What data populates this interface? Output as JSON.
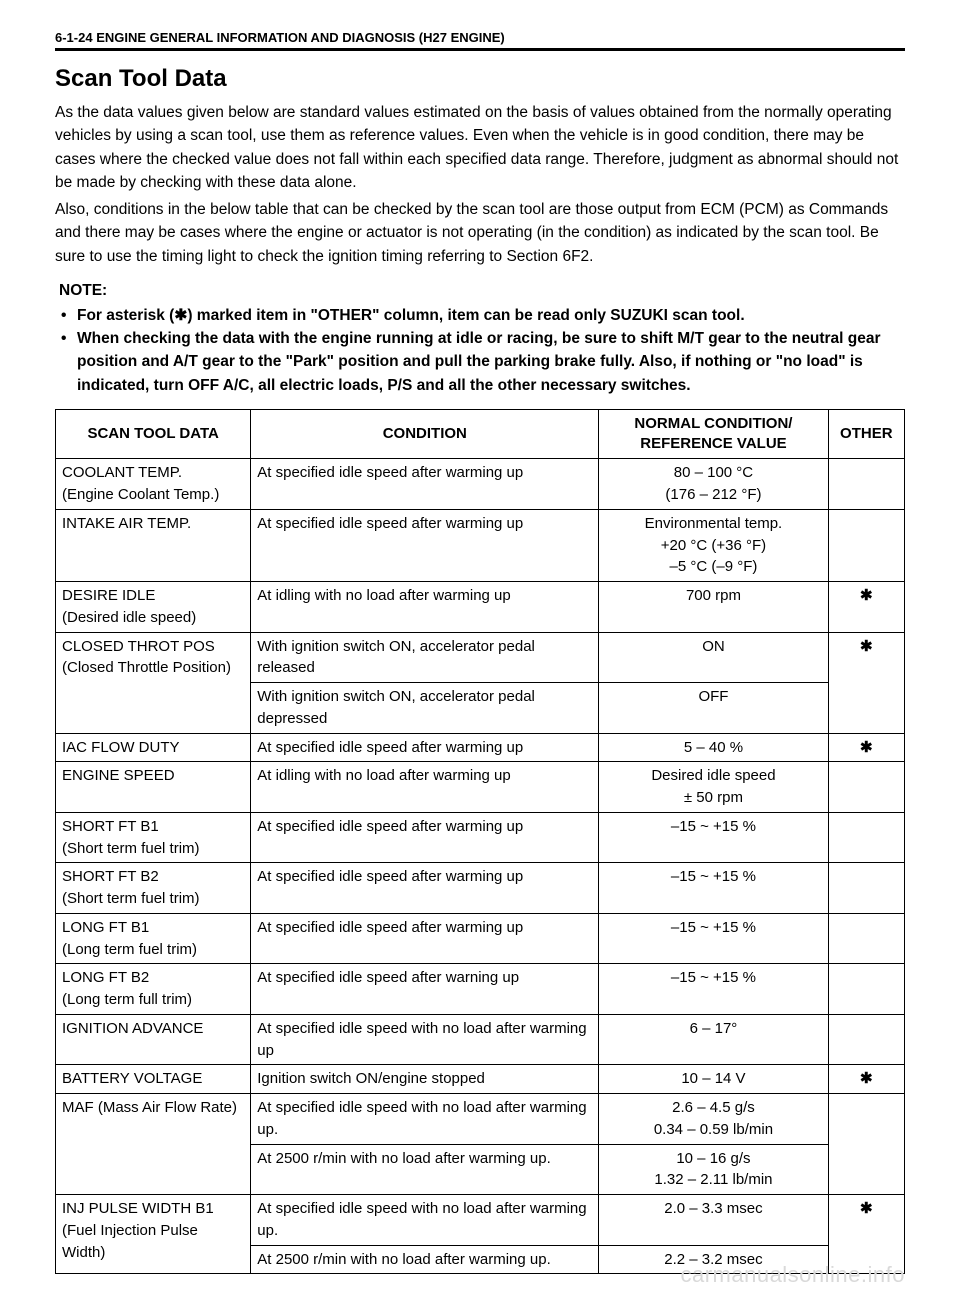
{
  "header": {
    "page_ref": "6-1-24 ENGINE GENERAL INFORMATION AND DIAGNOSIS (H27 ENGINE)"
  },
  "title": "Scan Tool Data",
  "paragraphs": {
    "p1": "As the data values given below are standard values estimated on the basis of values obtained from the normally operating vehicles by using a scan tool, use them as reference values. Even when the vehicle is in good condition, there may be cases where the checked value does not fall within each specified data range. Therefore, judgment as abnormal should not be made by checking with these data alone.",
    "p2": "Also, conditions in the below table that can be checked by the scan tool are those output from ECM (PCM) as Commands and there may be cases where the engine or actuator is not operating (in the condition) as indicated by the scan tool. Be sure to use the timing light to check the ignition timing referring to Section 6F2."
  },
  "note": {
    "label": "NOTE:",
    "items": [
      "For asterisk (✱) marked item in \"OTHER\" column, item can be read only SUZUKI scan tool.",
      "When checking the data with the engine running at idle or racing, be sure to shift M/T gear to the neutral gear position and A/T gear to the \"Park\" position and pull the parking brake fully. Also, if nothing or \"no load\" is indicated, turn OFF A/C, all electric loads, P/S and all the other necessary switches."
    ]
  },
  "table": {
    "headers": {
      "c0": "SCAN TOOL DATA",
      "c1": "CONDITION",
      "c2": "NORMAL CONDITION/ REFERENCE VALUE",
      "c3": "OTHER"
    },
    "rows": {
      "r0": {
        "data": "COOLANT TEMP.\n(Engine Coolant Temp.)",
        "cond": "At specified idle speed after warming up",
        "ref": "80 – 100 °C\n(176 – 212 °F)",
        "other": ""
      },
      "r1": {
        "data": "INTAKE AIR TEMP.",
        "cond": "At specified idle speed after warming up",
        "ref": "Environmental temp.\n+20 °C (+36 °F)\n–5 °C (–9 °F)",
        "other": ""
      },
      "r2": {
        "data": "DESIRE IDLE\n(Desired idle speed)",
        "cond": "At idling with no load after warming up",
        "ref": "700 rpm",
        "other": "✱"
      },
      "r3a": {
        "data": "CLOSED THROT POS\n(Closed Throttle Position)",
        "cond": "With ignition switch ON, accelerator pedal released",
        "ref": "ON",
        "other": "✱"
      },
      "r3b": {
        "cond": "With ignition switch ON, accelerator pedal depressed",
        "ref": "OFF"
      },
      "r4": {
        "data": "IAC FLOW DUTY",
        "cond": "At specified idle speed after warming up",
        "ref": "5 – 40 %",
        "other": "✱"
      },
      "r5": {
        "data": "ENGINE SPEED",
        "cond": "At idling with no load after warming up",
        "ref": "Desired idle speed\n± 50 rpm",
        "other": ""
      },
      "r6": {
        "data": "SHORT FT B1\n(Short term fuel trim)",
        "cond": "At specified idle speed after warming up",
        "ref": "–15 ~ +15 %",
        "other": ""
      },
      "r7": {
        "data": "SHORT FT B2\n(Short term fuel trim)",
        "cond": "At specified idle speed after warming up",
        "ref": "–15 ~ +15 %",
        "other": ""
      },
      "r8": {
        "data": "LONG FT B1\n(Long term fuel trim)",
        "cond": "At specified idle speed after warming up",
        "ref": "–15 ~ +15 %",
        "other": ""
      },
      "r9": {
        "data": "LONG FT B2\n(Long term full trim)",
        "cond": "At specified idle speed after warning up",
        "ref": "–15 ~ +15 %",
        "other": ""
      },
      "r10": {
        "data": "IGNITION ADVANCE",
        "cond": "At specified idle speed with no load after warming up",
        "ref": "6 – 17°",
        "other": ""
      },
      "r11": {
        "data": "BATTERY VOLTAGE",
        "cond": "Ignition switch ON/engine stopped",
        "ref": "10 – 14 V",
        "other": "✱"
      },
      "r12a": {
        "data": "MAF (Mass Air Flow Rate)",
        "cond": "At specified idle speed with no load after warming up.",
        "ref": "2.6 – 4.5 g/s\n0.34 – 0.59 lb/min",
        "other": ""
      },
      "r12b": {
        "cond": "At 2500 r/min with no load after warming up.",
        "ref": "10 – 16 g/s\n1.32 – 2.11 lb/min"
      },
      "r13a": {
        "data": "INJ PULSE WIDTH B1\n(Fuel Injection Pulse Width)",
        "cond": "At specified idle speed with no load after warming up.",
        "ref": "2.0 – 3.3 msec",
        "other": "✱"
      },
      "r13b": {
        "cond": "At 2500 r/min with no load after warming up.",
        "ref": "2.2 – 3.2 msec"
      }
    }
  },
  "watermark": "carmanualsonline.info"
}
